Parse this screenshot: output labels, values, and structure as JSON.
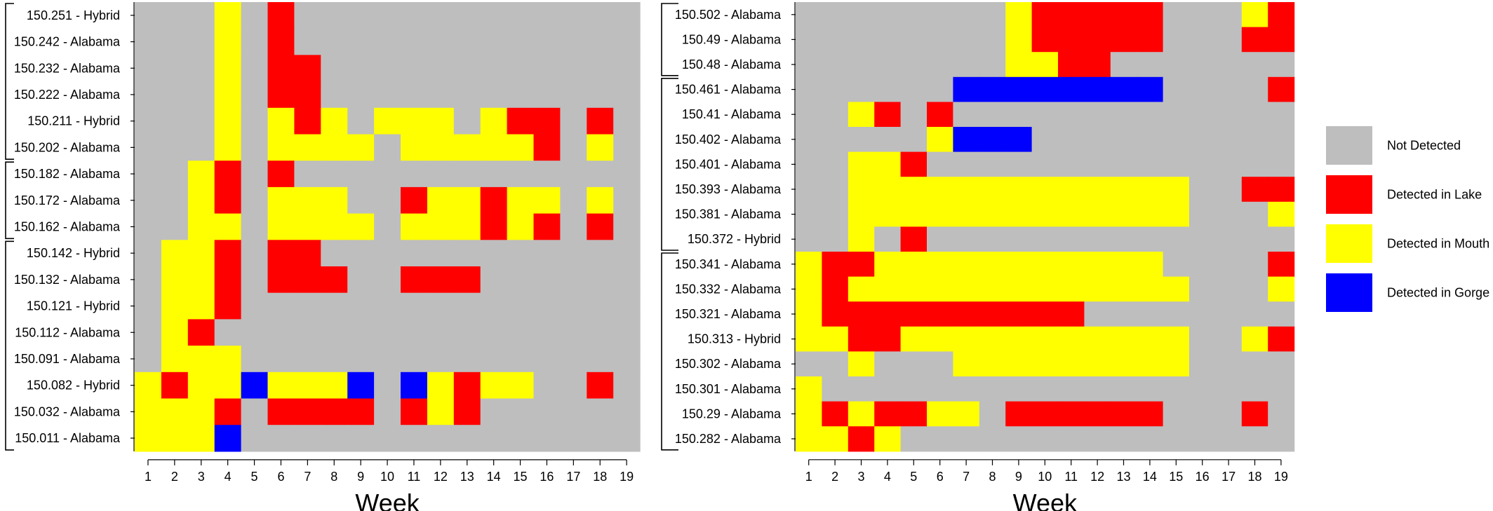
{
  "chart_data": [
    {
      "type": "heatmap",
      "xlabel": "Week",
      "weeks": [
        "1",
        "2",
        "3",
        "4",
        "5",
        "6",
        "7",
        "8",
        "9",
        "10",
        "11",
        "12",
        "13",
        "14",
        "15",
        "16",
        "17",
        "18",
        "19"
      ],
      "rows": [
        {
          "label": "150.251 - Hybrid",
          "cells": "GGGYGRGGGGGGGGGGGGG"
        },
        {
          "label": "150.242 - Alabama",
          "cells": "GGGYGRGGGGGGGGGGGGG"
        },
        {
          "label": "150.232 - Alabama",
          "cells": "GGGYGRRGGGGGGGGGGGG"
        },
        {
          "label": "150.222 - Alabama",
          "cells": "GGGYGRRGGGGGGGGGGGG"
        },
        {
          "label": "150.211 - Hybrid",
          "cells": "GGGYGYRYGYYYGYRRGRG"
        },
        {
          "label": "150.202 - Alabama",
          "cells": "GGGYGYYYYGYYYYYRGYG"
        },
        {
          "label": "150.182 - Alabama",
          "cells": "GGYRGRGGGGGGGGGGGGG"
        },
        {
          "label": "150.172 - Alabama",
          "cells": "GGYRGYYYGGRYYRYYGYG"
        },
        {
          "label": "150.162 - Alabama",
          "cells": "GGYYGYYYYGYYYRYRGRG"
        },
        {
          "label": "150.142 - Hybrid",
          "cells": "GYYRGRRGGGGGGGGGGGG"
        },
        {
          "label": "150.132 - Alabama",
          "cells": "GYYRGRRRGGRRRGGGGGG"
        },
        {
          "label": "150.121 - Hybrid",
          "cells": "GYYRGGGGGGGGGGGGGGG"
        },
        {
          "label": "150.112 - Alabama",
          "cells": "GYRGGGGGGGGGGGGGGGG"
        },
        {
          "label": "150.091 - Alabama",
          "cells": "GYYYGGGGGGGGGGGGGGG"
        },
        {
          "label": "150.082 - Hybrid",
          "cells": "YRYYBYYYBGBYRYYGGRG"
        },
        {
          "label": "150.032 - Alabama",
          "cells": "YYYRGRRRRGRYRGGGGGG"
        },
        {
          "label": "150.011 - Alabama",
          "cells": "YYYBGGGGGGGGGGGGGGG"
        }
      ],
      "groups": [
        [
          0,
          5
        ],
        [
          6,
          8
        ],
        [
          9,
          16
        ]
      ]
    },
    {
      "type": "heatmap",
      "xlabel": "Week",
      "weeks": [
        "1",
        "2",
        "3",
        "4",
        "5",
        "6",
        "7",
        "8",
        "9",
        "10",
        "11",
        "12",
        "13",
        "14",
        "15",
        "16",
        "17",
        "18",
        "19"
      ],
      "rows": [
        {
          "label": "150.502 - Alabama",
          "cells": "GGGGGGGGYRRRRRGGGYR"
        },
        {
          "label": "150.49 - Alabama",
          "cells": "GGGGGGGGYRRRRRGGGRR"
        },
        {
          "label": "150.48 - Alabama",
          "cells": "GGGGGGGGYYRRGGGGGGG"
        },
        {
          "label": "150.461 - Alabama",
          "cells": "GGGGGGBBBBBBBBGGGGR"
        },
        {
          "label": "150.41 - Alabama",
          "cells": "GGYRGRGGGGGGGGGGGGG"
        },
        {
          "label": "150.402 - Alabama",
          "cells": "GGGGGYBBBGGGGGGGGGG"
        },
        {
          "label": "150.401 - Alabama",
          "cells": "GGYYRGGGGGGGGGGGGGG"
        },
        {
          "label": "150.393 - Alabama",
          "cells": "GGYYYYYYYYYYYYYGGRR"
        },
        {
          "label": "150.381 - Alabama",
          "cells": "GGYYYYYYYYYYYYYGGGY"
        },
        {
          "label": "150.372 - Hybrid",
          "cells": "GGYGRGGGGGGGGGGGGGG"
        },
        {
          "label": "150.341 - Alabama",
          "cells": "YRRYYYYYYYYYYYGGGGR"
        },
        {
          "label": "150.332 - Alabama",
          "cells": "YRYYYYYYYYYYYYYGGGY"
        },
        {
          "label": "150.321 - Alabama",
          "cells": "YRRRRRRRRRRGGGGGGGG"
        },
        {
          "label": "150.313 - Hybrid",
          "cells": "YYRRYYYYYYYYYYYGGYR"
        },
        {
          "label": "150.302 - Alabama",
          "cells": "GGYGGGYYYYYYYYYGGGG"
        },
        {
          "label": "150.301 - Alabama",
          "cells": "YGGGGGGGGGGGGGGGGGG"
        },
        {
          "label": "150.29 - Alabama",
          "cells": "YRYRRYYGRRRRRRGGGRG"
        },
        {
          "label": "150.282 - Alabama",
          "cells": "YYRYGGGGGGGGGGGGGGG"
        }
      ],
      "groups": [
        [
          0,
          2
        ],
        [
          3,
          9
        ],
        [
          10,
          17
        ]
      ]
    }
  ],
  "legend": {
    "placement": "right",
    "items": [
      {
        "code": "G",
        "label": "Not Detected",
        "color": "#BEBEBE"
      },
      {
        "code": "R",
        "label": "Detected in Lake",
        "color": "#FF0000"
      },
      {
        "code": "Y",
        "label": "Detected in Mouth",
        "color": "#FFFF00"
      },
      {
        "code": "B",
        "label": "Detected in Gorge",
        "color": "#0000FF"
      }
    ]
  }
}
